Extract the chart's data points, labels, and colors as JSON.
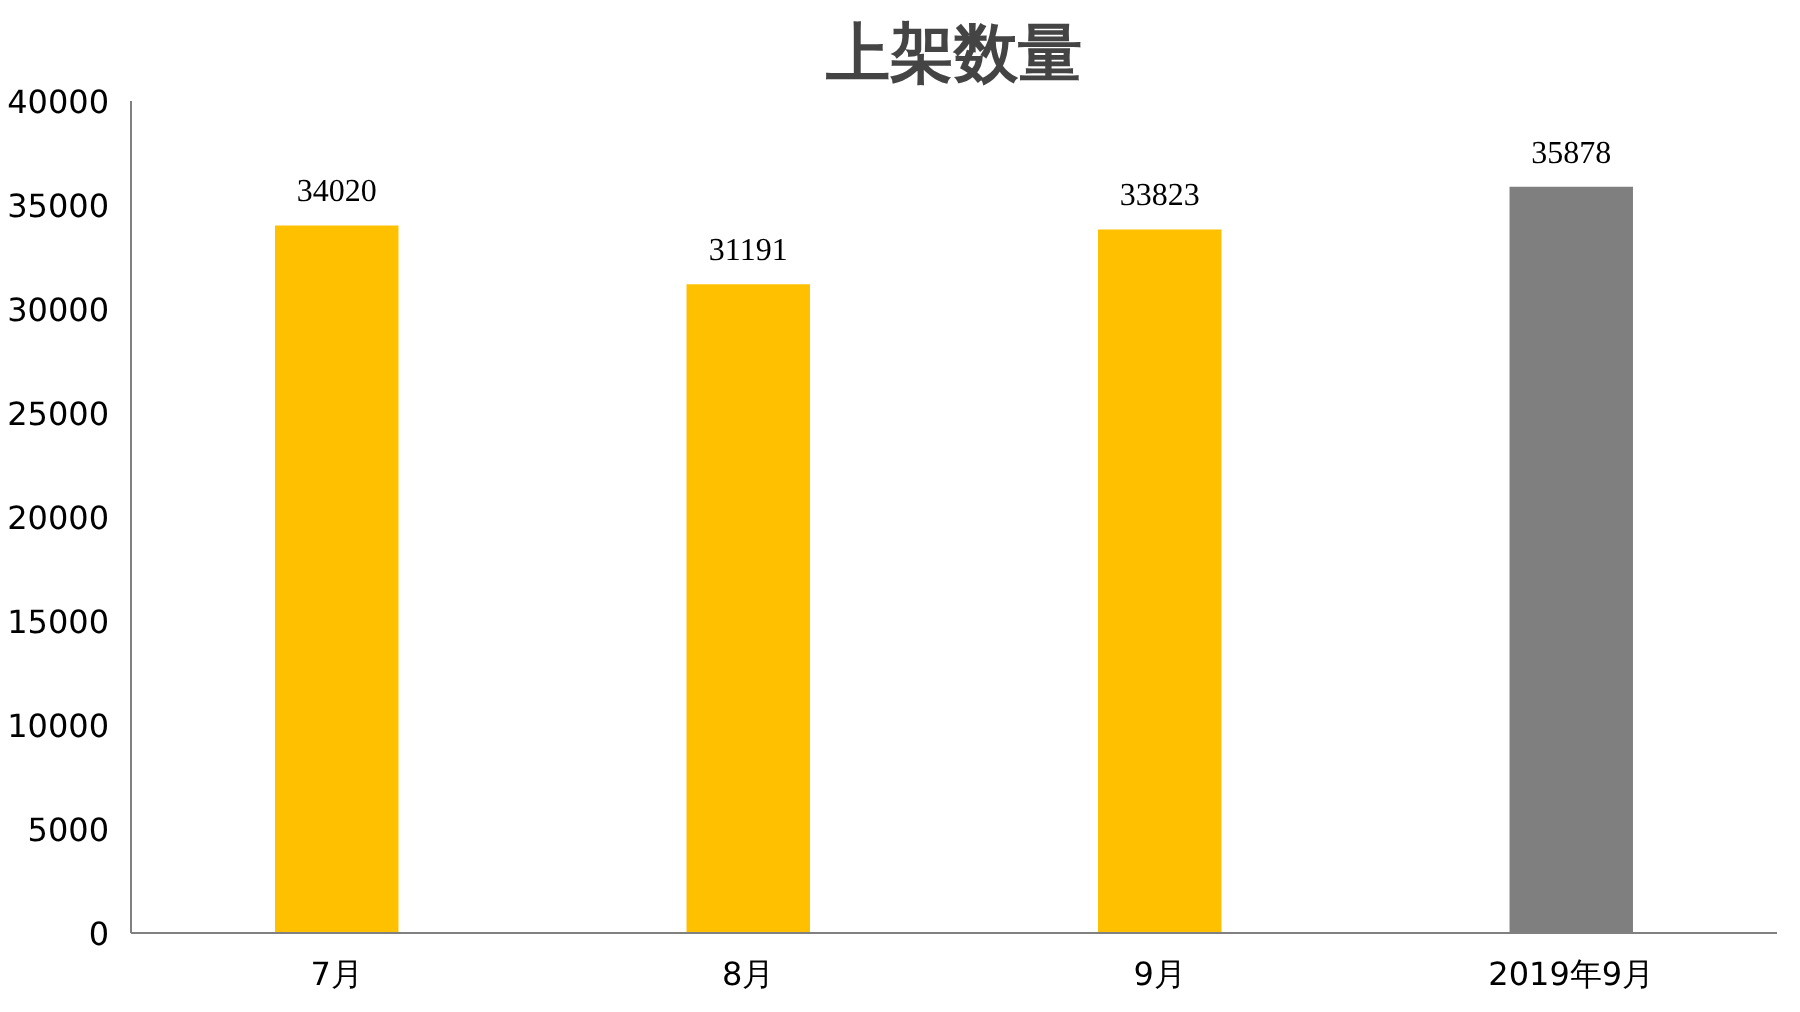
{
  "chart_data": {
    "type": "bar",
    "title": "上架数量",
    "categories": [
      "7月",
      "8月",
      "9月",
      "2019年9月"
    ],
    "values": [
      34020,
      31191,
      33823,
      35878
    ],
    "colors": [
      "#ffc000",
      "#ffc000",
      "#ffc000",
      "#7f7f7f"
    ],
    "ylim": [
      0,
      40000
    ],
    "yticks": [
      0,
      5000,
      10000,
      15000,
      20000,
      25000,
      30000,
      35000,
      40000
    ],
    "grid": false,
    "data_labels": true
  }
}
